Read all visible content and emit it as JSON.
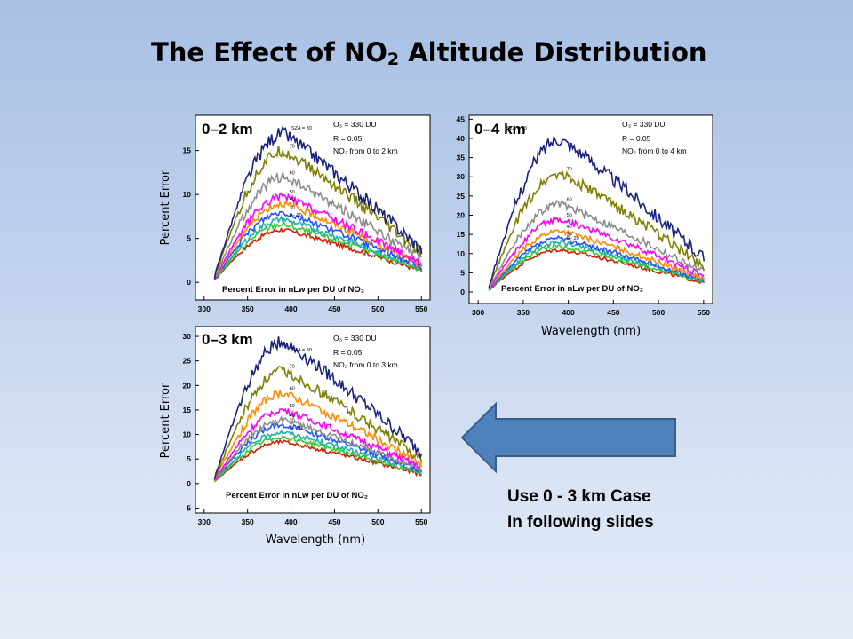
{
  "slide": {
    "title_main": "The Effect of NO",
    "title_sub": "2",
    "title_rest": " Altitude Distribution",
    "note_line1": "Use 0 - 3 km Case",
    "note_line2": "In following slides"
  },
  "chart_data": [
    {
      "id": "p2",
      "type": "line",
      "panel_label": "0–2 km",
      "sza_label": "SZA = 80",
      "o3_label": "O₃ = 330 DU",
      "r_label": "R = 0.05",
      "no2_label": "NO₂ from 0 to 2 km",
      "caption": "Percent Error in nLw per DU of NO₂",
      "ylabel": "Percent Error",
      "xlabel": "",
      "xlim": [
        290,
        560
      ],
      "ylim": [
        -2,
        19
      ],
      "xticks": [
        300,
        350,
        400,
        450,
        500,
        550
      ],
      "yticks": [
        0,
        5,
        10,
        15
      ],
      "grid": false,
      "series": [
        {
          "name": "80",
          "color": "#1a237e",
          "peak": 17
        },
        {
          "name": "70",
          "color": "#808000",
          "peak": 15
        },
        {
          "name": "60",
          "color": "#8c8c8c",
          "peak": 12
        },
        {
          "name": "",
          "color": "#ff00ff",
          "peak": 9.8
        },
        {
          "name": "50",
          "color": "#ff8c00",
          "peak": 9
        },
        {
          "name": "",
          "color": "#2255ff",
          "peak": 8
        },
        {
          "name": "",
          "color": "#20b2aa",
          "peak": 7.2
        },
        {
          "name": "",
          "color": "#32cd32",
          "peak": 6.6
        },
        {
          "name": "0 - 20",
          "color": "#cc2200",
          "peak": 6
        }
      ],
      "curve_labels": [
        "70",
        "60",
        "50",
        "40",
        "30",
        "0 - 20"
      ]
    },
    {
      "id": "p4",
      "type": "line",
      "panel_label": "0–4 km",
      "sza_label": "SZA = 80",
      "o3_label": "O₃ = 330 DU",
      "r_label": "R = 0.05",
      "no2_label": "NO₂ from 0 to 4 km",
      "caption": "Percent Error in nLw per DU of NO₂",
      "ylabel": "",
      "xlabel": "Wavelength (nm)",
      "xlim": [
        290,
        560
      ],
      "ylim": [
        -3,
        46
      ],
      "xticks": [
        300,
        350,
        400,
        450,
        500,
        550
      ],
      "yticks": [
        0,
        5,
        10,
        15,
        20,
        25,
        30,
        35,
        40,
        45
      ],
      "grid": false,
      "series": [
        {
          "name": "80",
          "color": "#1a237e",
          "peak": 40
        },
        {
          "name": "70",
          "color": "#808000",
          "peak": 31
        },
        {
          "name": "60",
          "color": "#8c8c8c",
          "peak": 23
        },
        {
          "name": "",
          "color": "#ff00ff",
          "peak": 19
        },
        {
          "name": "50",
          "color": "#ff8c00",
          "peak": 16
        },
        {
          "name": "",
          "color": "#2255ff",
          "peak": 14
        },
        {
          "name": "",
          "color": "#20b2aa",
          "peak": 13
        },
        {
          "name": "",
          "color": "#32cd32",
          "peak": 12
        },
        {
          "name": "0 - 20",
          "color": "#cc2200",
          "peak": 11
        }
      ],
      "curve_labels": [
        "70",
        "60",
        "50",
        "40",
        "30",
        "0 - 20"
      ]
    },
    {
      "id": "p3",
      "type": "line",
      "panel_label": "0–3 km",
      "sza_label": "SZA = 80",
      "o3_label": "O₃ = 330 DU",
      "r_label": "R = 0.05",
      "no2_label": "NO₂ from 0 to 3 km",
      "caption": "Percent Error in nLw per DU of NO₂",
      "ylabel": "Percent Error",
      "xlabel": "Wavelength (nm)",
      "xlim": [
        290,
        560
      ],
      "ylim": [
        -6,
        32
      ],
      "xticks": [
        300,
        350,
        400,
        450,
        500,
        550
      ],
      "yticks": [
        -5,
        0,
        5,
        10,
        15,
        20,
        25,
        30
      ],
      "grid": false,
      "series": [
        {
          "name": "80",
          "color": "#1a237e",
          "peak": 29
        },
        {
          "name": "70",
          "color": "#808000",
          "peak": 23
        },
        {
          "name": "60",
          "color": "#ff8c00",
          "peak": 18.5
        },
        {
          "name": "",
          "color": "#ff00ff",
          "peak": 15
        },
        {
          "name": "50",
          "color": "#8c8c8c",
          "peak": 13
        },
        {
          "name": "",
          "color": "#2255ff",
          "peak": 12
        },
        {
          "name": "",
          "color": "#20b2aa",
          "peak": 10.5
        },
        {
          "name": "",
          "color": "#32cd32",
          "peak": 9.5
        },
        {
          "name": "0 - 20",
          "color": "#cc2200",
          "peak": 8.5
        }
      ],
      "curve_labels": [
        "70",
        "60",
        "50",
        "40",
        "30",
        "0 - 20"
      ]
    }
  ],
  "arrow": {
    "color": "#4f81bd",
    "stroke": "#385d8a"
  }
}
